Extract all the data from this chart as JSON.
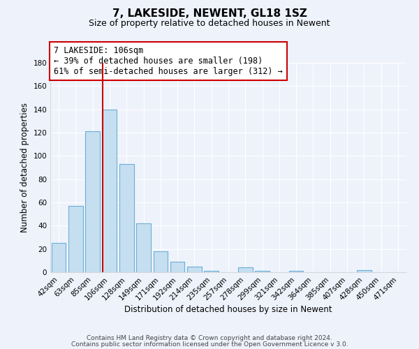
{
  "title": "7, LAKESIDE, NEWENT, GL18 1SZ",
  "subtitle": "Size of property relative to detached houses in Newent",
  "xlabel": "Distribution of detached houses by size in Newent",
  "ylabel": "Number of detached properties",
  "bin_labels": [
    "42sqm",
    "63sqm",
    "85sqm",
    "106sqm",
    "128sqm",
    "149sqm",
    "171sqm",
    "192sqm",
    "214sqm",
    "235sqm",
    "257sqm",
    "278sqm",
    "299sqm",
    "321sqm",
    "342sqm",
    "364sqm",
    "385sqm",
    "407sqm",
    "428sqm",
    "450sqm",
    "471sqm"
  ],
  "bar_values": [
    25,
    57,
    121,
    140,
    93,
    42,
    18,
    9,
    5,
    1,
    0,
    4,
    1,
    0,
    1,
    0,
    0,
    0,
    2,
    0,
    0
  ],
  "bar_color": "#c5dff0",
  "bar_edge_color": "#6baed6",
  "vline_color": "#cc0000",
  "vline_bin_index": 3,
  "ylim": [
    0,
    180
  ],
  "yticks": [
    0,
    20,
    40,
    60,
    80,
    100,
    120,
    140,
    160,
    180
  ],
  "annotation_text_line1": "7 LAKESIDE: 106sqm",
  "annotation_text_line2": "← 39% of detached houses are smaller (198)",
  "annotation_text_line3": "61% of semi-detached houses are larger (312) →",
  "footer_line1": "Contains HM Land Registry data © Crown copyright and database right 2024.",
  "footer_line2": "Contains public sector information licensed under the Open Government Licence v 3.0.",
  "background_color": "#eef2fb",
  "grid_color": "#ffffff",
  "title_fontsize": 11,
  "subtitle_fontsize": 9,
  "axis_label_fontsize": 8.5,
  "tick_fontsize": 7.5,
  "annotation_fontsize": 8.5,
  "footer_fontsize": 6.5
}
